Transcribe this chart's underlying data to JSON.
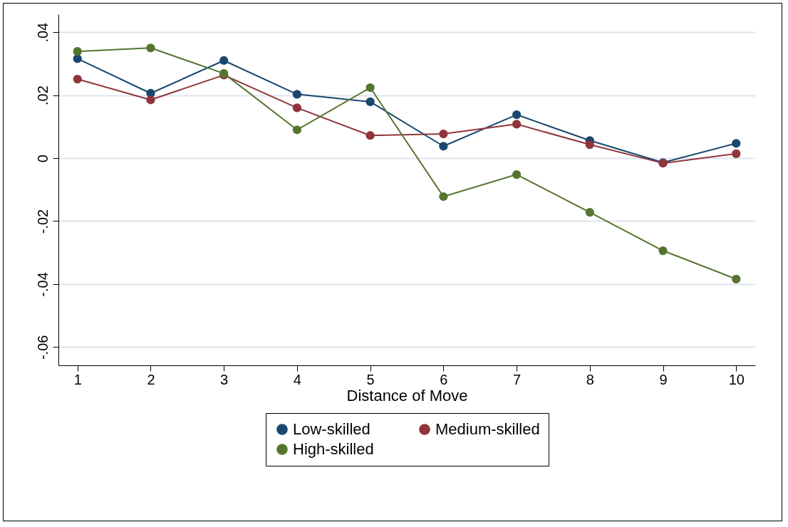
{
  "chart_data": {
    "type": "line",
    "xlabel": "Distance of Move",
    "x": [
      1,
      2,
      3,
      4,
      5,
      6,
      7,
      8,
      9,
      10
    ],
    "series": [
      {
        "name": "Low-skilled",
        "color": "#1a476f",
        "values": [
          0.0316,
          0.0206,
          0.031,
          0.0203,
          0.0179,
          0.0038,
          0.0138,
          0.0056,
          -0.0014,
          0.0047
        ]
      },
      {
        "name": "Medium-skilled",
        "color": "#90353b",
        "values": [
          0.0251,
          0.0185,
          0.0264,
          0.016,
          0.0072,
          0.0077,
          0.0108,
          0.0043,
          -0.0016,
          0.0014
        ]
      },
      {
        "name": "High-skilled",
        "color": "#55752f",
        "values": [
          0.0339,
          0.035,
          0.0269,
          0.009,
          0.0224,
          -0.0122,
          -0.0052,
          -0.0172,
          -0.0294,
          -0.0384
        ]
      }
    ],
    "xlim": [
      0.74,
      10.26
    ],
    "xticks": [
      1,
      2,
      3,
      4,
      5,
      6,
      7,
      8,
      9,
      10
    ],
    "ylim": [
      -0.0658,
      0.0457
    ],
    "yticks": [
      {
        "value": -0.06,
        "label": "-.06"
      },
      {
        "value": -0.04,
        "label": "-.04"
      },
      {
        "value": -0.02,
        "label": "-.02"
      },
      {
        "value": 0,
        "label": "0"
      },
      {
        "value": 0.02,
        "label": ".02"
      },
      {
        "value": 0.04,
        "label": ".04"
      }
    ],
    "grid": "y",
    "legend": "bottom",
    "marker": "circle",
    "line_style": "solid"
  }
}
